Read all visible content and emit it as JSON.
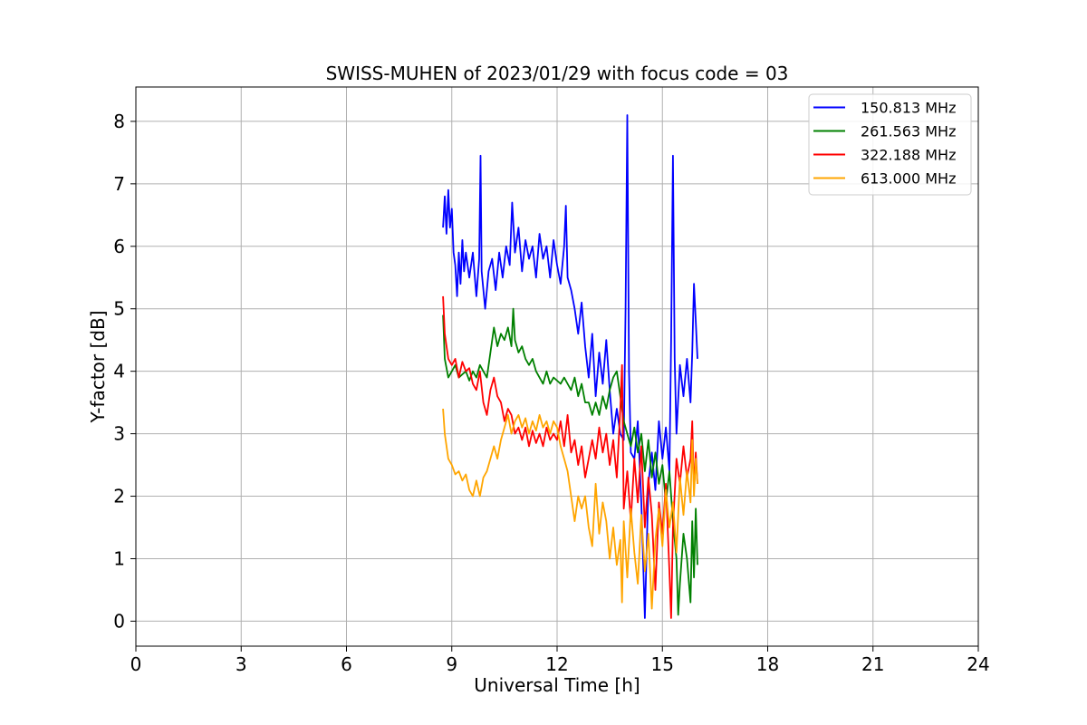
{
  "chart_data": {
    "type": "line",
    "title": "SWISS-MUHEN of 2023/01/29 with focus code = 03",
    "xlabel": "Universal Time [h]",
    "ylabel": "Y-factor [dB]",
    "xlim": [
      0,
      24
    ],
    "ylim": [
      -0.4,
      8.55
    ],
    "xticks": [
      0,
      3,
      6,
      9,
      12,
      15,
      18,
      21,
      24
    ],
    "yticks": [
      0,
      1,
      2,
      3,
      4,
      5,
      6,
      7,
      8
    ],
    "grid": true,
    "legend_position": "top-right",
    "series": [
      {
        "name": "150.813 MHz",
        "color": "#0000ff",
        "points": [
          [
            8.75,
            6.3
          ],
          [
            8.8,
            6.8
          ],
          [
            8.85,
            6.2
          ],
          [
            8.9,
            6.9
          ],
          [
            8.95,
            6.3
          ],
          [
            9.0,
            6.6
          ],
          [
            9.05,
            5.9
          ],
          [
            9.1,
            5.7
          ],
          [
            9.15,
            5.2
          ],
          [
            9.2,
            5.9
          ],
          [
            9.25,
            5.4
          ],
          [
            9.3,
            6.1
          ],
          [
            9.35,
            5.6
          ],
          [
            9.4,
            5.9
          ],
          [
            9.5,
            5.5
          ],
          [
            9.6,
            5.9
          ],
          [
            9.7,
            5.2
          ],
          [
            9.78,
            5.8
          ],
          [
            9.82,
            7.45
          ],
          [
            9.85,
            5.6
          ],
          [
            9.95,
            5.0
          ],
          [
            10.05,
            5.6
          ],
          [
            10.15,
            5.8
          ],
          [
            10.25,
            5.3
          ],
          [
            10.35,
            5.9
          ],
          [
            10.45,
            5.5
          ],
          [
            10.55,
            6.0
          ],
          [
            10.65,
            5.7
          ],
          [
            10.72,
            6.7
          ],
          [
            10.8,
            5.9
          ],
          [
            10.9,
            6.3
          ],
          [
            11.0,
            5.6
          ],
          [
            11.1,
            6.1
          ],
          [
            11.2,
            5.8
          ],
          [
            11.3,
            6.0
          ],
          [
            11.4,
            5.5
          ],
          [
            11.5,
            6.2
          ],
          [
            11.6,
            5.8
          ],
          [
            11.7,
            6.0
          ],
          [
            11.8,
            5.5
          ],
          [
            11.9,
            6.1
          ],
          [
            12.0,
            5.7
          ],
          [
            12.1,
            5.4
          ],
          [
            12.2,
            6.0
          ],
          [
            12.25,
            6.65
          ],
          [
            12.3,
            5.5
          ],
          [
            12.4,
            5.3
          ],
          [
            12.5,
            5.0
          ],
          [
            12.6,
            4.6
          ],
          [
            12.7,
            5.1
          ],
          [
            12.8,
            4.4
          ],
          [
            12.9,
            3.9
          ],
          [
            13.0,
            4.6
          ],
          [
            13.1,
            3.6
          ],
          [
            13.2,
            4.3
          ],
          [
            13.3,
            3.8
          ],
          [
            13.4,
            4.5
          ],
          [
            13.5,
            3.7
          ],
          [
            13.6,
            3.0
          ],
          [
            13.7,
            3.4
          ],
          [
            13.8,
            3.0
          ],
          [
            13.9,
            2.9
          ],
          [
            13.95,
            5.0
          ],
          [
            14.0,
            8.1
          ],
          [
            14.05,
            4.0
          ],
          [
            14.1,
            2.7
          ],
          [
            14.2,
            2.6
          ],
          [
            14.3,
            3.2
          ],
          [
            14.4,
            1.9
          ],
          [
            14.5,
            0.05
          ],
          [
            14.6,
            2.2
          ],
          [
            14.7,
            2.7
          ],
          [
            14.8,
            2.1
          ],
          [
            14.9,
            3.2
          ],
          [
            15.0,
            2.6
          ],
          [
            15.1,
            3.1
          ],
          [
            15.2,
            2.4
          ],
          [
            15.25,
            4.5
          ],
          [
            15.3,
            7.45
          ],
          [
            15.35,
            4.2
          ],
          [
            15.4,
            3.0
          ],
          [
            15.5,
            4.1
          ],
          [
            15.6,
            3.6
          ],
          [
            15.7,
            4.2
          ],
          [
            15.8,
            3.5
          ],
          [
            15.85,
            4.3
          ],
          [
            15.9,
            5.4
          ],
          [
            15.95,
            4.8
          ],
          [
            16.0,
            4.2
          ]
        ]
      },
      {
        "name": "261.563 MHz",
        "color": "#008000",
        "points": [
          [
            8.75,
            4.9
          ],
          [
            8.8,
            4.2
          ],
          [
            8.9,
            3.9
          ],
          [
            9.0,
            4.0
          ],
          [
            9.1,
            4.1
          ],
          [
            9.2,
            3.9
          ],
          [
            9.3,
            3.95
          ],
          [
            9.4,
            4.0
          ],
          [
            9.5,
            3.85
          ],
          [
            9.6,
            4.0
          ],
          [
            9.7,
            3.9
          ],
          [
            9.8,
            4.1
          ],
          [
            9.9,
            4.0
          ],
          [
            10.0,
            3.9
          ],
          [
            10.1,
            4.3
          ],
          [
            10.2,
            4.7
          ],
          [
            10.3,
            4.4
          ],
          [
            10.4,
            4.6
          ],
          [
            10.5,
            4.5
          ],
          [
            10.6,
            4.7
          ],
          [
            10.7,
            4.4
          ],
          [
            10.75,
            5.0
          ],
          [
            10.8,
            4.5
          ],
          [
            10.9,
            4.3
          ],
          [
            11.0,
            4.4
          ],
          [
            11.1,
            4.2
          ],
          [
            11.2,
            4.1
          ],
          [
            11.3,
            4.2
          ],
          [
            11.4,
            4.0
          ],
          [
            11.5,
            3.9
          ],
          [
            11.6,
            3.8
          ],
          [
            11.7,
            4.0
          ],
          [
            11.8,
            3.8
          ],
          [
            11.9,
            3.9
          ],
          [
            12.0,
            3.85
          ],
          [
            12.1,
            3.8
          ],
          [
            12.2,
            3.9
          ],
          [
            12.3,
            3.8
          ],
          [
            12.4,
            3.7
          ],
          [
            12.5,
            3.9
          ],
          [
            12.6,
            3.6
          ],
          [
            12.7,
            3.8
          ],
          [
            12.8,
            3.5
          ],
          [
            12.9,
            3.5
          ],
          [
            13.0,
            3.3
          ],
          [
            13.1,
            3.5
          ],
          [
            13.2,
            3.3
          ],
          [
            13.3,
            3.6
          ],
          [
            13.4,
            3.4
          ],
          [
            13.5,
            3.7
          ],
          [
            13.6,
            3.9
          ],
          [
            13.7,
            4.0
          ],
          [
            13.8,
            3.6
          ],
          [
            13.9,
            3.2
          ],
          [
            14.0,
            3.0
          ],
          [
            14.1,
            2.8
          ],
          [
            14.2,
            3.1
          ],
          [
            14.3,
            2.7
          ],
          [
            14.4,
            3.0
          ],
          [
            14.5,
            2.4
          ],
          [
            14.6,
            2.9
          ],
          [
            14.7,
            2.3
          ],
          [
            14.8,
            2.7
          ],
          [
            14.9,
            2.2
          ],
          [
            15.0,
            2.5
          ],
          [
            15.1,
            1.9
          ],
          [
            15.2,
            2.4
          ],
          [
            15.3,
            1.6
          ],
          [
            15.4,
            1.0
          ],
          [
            15.45,
            0.1
          ],
          [
            15.5,
            0.6
          ],
          [
            15.6,
            1.4
          ],
          [
            15.7,
            1.0
          ],
          [
            15.8,
            0.3
          ],
          [
            15.85,
            1.6
          ],
          [
            15.9,
            0.7
          ],
          [
            15.95,
            1.8
          ],
          [
            16.0,
            0.9
          ]
        ]
      },
      {
        "name": "322.188 MHz",
        "color": "#ff0000",
        "points": [
          [
            8.75,
            5.2
          ],
          [
            8.8,
            4.6
          ],
          [
            8.9,
            4.2
          ],
          [
            9.0,
            4.1
          ],
          [
            9.1,
            4.2
          ],
          [
            9.2,
            3.9
          ],
          [
            9.3,
            4.15
          ],
          [
            9.4,
            4.0
          ],
          [
            9.5,
            4.05
          ],
          [
            9.6,
            3.8
          ],
          [
            9.7,
            3.7
          ],
          [
            9.8,
            4.0
          ],
          [
            9.9,
            3.5
          ],
          [
            10.0,
            3.3
          ],
          [
            10.1,
            3.7
          ],
          [
            10.2,
            3.9
          ],
          [
            10.3,
            3.6
          ],
          [
            10.4,
            3.5
          ],
          [
            10.5,
            3.2
          ],
          [
            10.6,
            3.4
          ],
          [
            10.7,
            3.3
          ],
          [
            10.8,
            3.0
          ],
          [
            10.9,
            3.1
          ],
          [
            11.0,
            2.9
          ],
          [
            11.1,
            3.1
          ],
          [
            11.2,
            2.8
          ],
          [
            11.3,
            3.05
          ],
          [
            11.4,
            2.85
          ],
          [
            11.5,
            3.0
          ],
          [
            11.6,
            2.8
          ],
          [
            11.7,
            3.1
          ],
          [
            11.8,
            2.9
          ],
          [
            11.9,
            3.0
          ],
          [
            12.0,
            2.9
          ],
          [
            12.1,
            3.2
          ],
          [
            12.2,
            2.8
          ],
          [
            12.3,
            3.3
          ],
          [
            12.4,
            2.7
          ],
          [
            12.5,
            2.9
          ],
          [
            12.6,
            2.5
          ],
          [
            12.7,
            2.8
          ],
          [
            12.8,
            2.3
          ],
          [
            12.9,
            2.6
          ],
          [
            13.0,
            2.9
          ],
          [
            13.1,
            2.6
          ],
          [
            13.2,
            3.1
          ],
          [
            13.3,
            2.7
          ],
          [
            13.4,
            3.0
          ],
          [
            13.5,
            2.5
          ],
          [
            13.6,
            2.9
          ],
          [
            13.7,
            2.3
          ],
          [
            13.8,
            3.4
          ],
          [
            13.85,
            4.1
          ],
          [
            13.9,
            1.8
          ],
          [
            14.0,
            2.4
          ],
          [
            14.1,
            1.6
          ],
          [
            14.2,
            2.6
          ],
          [
            14.3,
            1.9
          ],
          [
            14.4,
            2.8
          ],
          [
            14.5,
            1.5
          ],
          [
            14.6,
            2.3
          ],
          [
            14.7,
            1.7
          ],
          [
            14.8,
            0.5
          ],
          [
            14.9,
            1.9
          ],
          [
            15.0,
            1.4
          ],
          [
            15.1,
            2.2
          ],
          [
            15.2,
            0.8
          ],
          [
            15.25,
            0.05
          ],
          [
            15.3,
            1.5
          ],
          [
            15.4,
            2.6
          ],
          [
            15.5,
            2.2
          ],
          [
            15.6,
            2.8
          ],
          [
            15.7,
            2.3
          ],
          [
            15.8,
            2.6
          ],
          [
            15.85,
            3.2
          ],
          [
            15.9,
            2.1
          ],
          [
            15.95,
            2.7
          ],
          [
            16.0,
            2.2
          ]
        ]
      },
      {
        "name": "613.000 MHz",
        "color": "#ffa500",
        "points": [
          [
            8.75,
            3.4
          ],
          [
            8.8,
            3.0
          ],
          [
            8.9,
            2.6
          ],
          [
            9.0,
            2.5
          ],
          [
            9.1,
            2.35
          ],
          [
            9.2,
            2.4
          ],
          [
            9.3,
            2.25
          ],
          [
            9.4,
            2.35
          ],
          [
            9.5,
            2.1
          ],
          [
            9.6,
            2.0
          ],
          [
            9.7,
            2.25
          ],
          [
            9.8,
            2.0
          ],
          [
            9.9,
            2.3
          ],
          [
            10.0,
            2.4
          ],
          [
            10.1,
            2.6
          ],
          [
            10.2,
            2.8
          ],
          [
            10.3,
            2.6
          ],
          [
            10.4,
            2.9
          ],
          [
            10.5,
            3.1
          ],
          [
            10.6,
            3.3
          ],
          [
            10.7,
            3.0
          ],
          [
            10.8,
            3.2
          ],
          [
            10.9,
            3.3
          ],
          [
            11.0,
            3.1
          ],
          [
            11.1,
            3.25
          ],
          [
            11.2,
            3.0
          ],
          [
            11.3,
            3.2
          ],
          [
            11.4,
            3.05
          ],
          [
            11.5,
            3.3
          ],
          [
            11.6,
            3.1
          ],
          [
            11.7,
            3.2
          ],
          [
            11.8,
            3.0
          ],
          [
            11.9,
            3.2
          ],
          [
            12.0,
            3.1
          ],
          [
            12.1,
            2.8
          ],
          [
            12.2,
            2.6
          ],
          [
            12.3,
            2.4
          ],
          [
            12.4,
            2.0
          ],
          [
            12.5,
            1.6
          ],
          [
            12.6,
            2.0
          ],
          [
            12.7,
            1.8
          ],
          [
            12.8,
            2.0
          ],
          [
            12.9,
            1.5
          ],
          [
            13.0,
            1.2
          ],
          [
            13.1,
            2.2
          ],
          [
            13.2,
            1.4
          ],
          [
            13.3,
            1.9
          ],
          [
            13.4,
            1.6
          ],
          [
            13.5,
            1.0
          ],
          [
            13.6,
            1.5
          ],
          [
            13.7,
            0.9
          ],
          [
            13.8,
            1.3
          ],
          [
            13.85,
            0.3
          ],
          [
            13.9,
            1.6
          ],
          [
            14.0,
            0.7
          ],
          [
            14.1,
            1.8
          ],
          [
            14.2,
            1.1
          ],
          [
            14.3,
            0.6
          ],
          [
            14.4,
            1.7
          ],
          [
            14.5,
            0.8
          ],
          [
            14.6,
            1.4
          ],
          [
            14.7,
            0.2
          ],
          [
            14.8,
            1.3
          ],
          [
            14.9,
            1.8
          ],
          [
            15.0,
            1.2
          ],
          [
            15.1,
            2.1
          ],
          [
            15.2,
            1.5
          ],
          [
            15.3,
            1.9
          ],
          [
            15.4,
            1.1
          ],
          [
            15.5,
            2.3
          ],
          [
            15.6,
            1.7
          ],
          [
            15.7,
            2.4
          ],
          [
            15.8,
            1.9
          ],
          [
            15.85,
            2.9
          ],
          [
            15.9,
            2.0
          ],
          [
            15.95,
            2.6
          ],
          [
            16.0,
            2.2
          ]
        ]
      }
    ]
  }
}
